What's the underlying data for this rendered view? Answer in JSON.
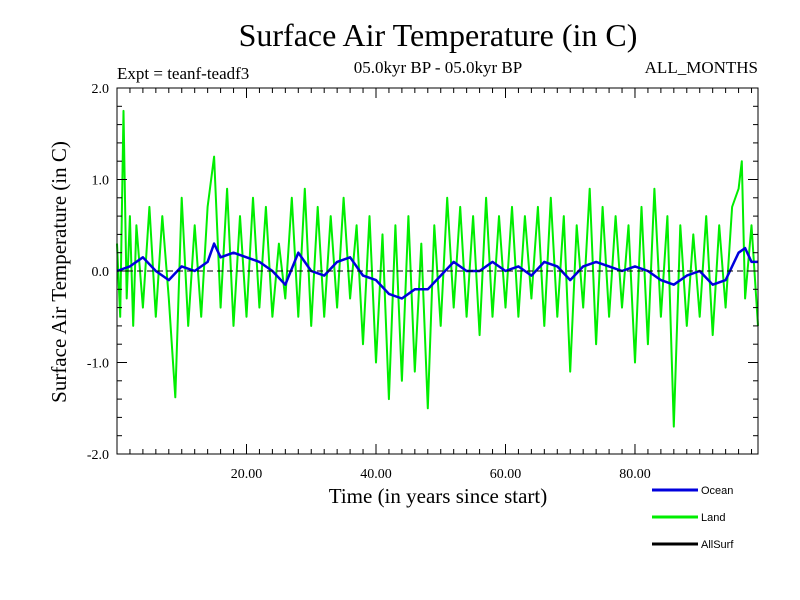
{
  "chart_data": {
    "type": "line",
    "title": "Surface Air Temperature (in C)",
    "subtitle_left": "Expt = teanf-teadf3",
    "subtitle_center": "05.0kyr BP - 05.0kyr BP",
    "subtitle_right": "ALL_MONTHS",
    "xlabel": "Time (in years since start)",
    "ylabel": "Surface Air Temperature (in C)",
    "xlim": [
      0,
      99
    ],
    "ylim": [
      -2.0,
      2.0
    ],
    "x_ticks": [
      20,
      40,
      60,
      80
    ],
    "x_tick_labels": [
      "20.00",
      "40.00",
      "60.00",
      "80.00"
    ],
    "y_ticks": [
      -2.0,
      -1.0,
      0.0,
      1.0,
      2.0
    ],
    "y_tick_labels": [
      "-2.0",
      "-1.0",
      "0.0",
      "1.0",
      "2.0"
    ],
    "zero_line": "dashed",
    "legend_position": "bottom-right",
    "series": [
      {
        "name": "Ocean",
        "color": "#0000dd",
        "x": [
          0,
          2,
          4,
          6,
          8,
          10,
          12,
          14,
          15,
          16,
          18,
          20,
          22,
          24,
          26,
          28,
          30,
          32,
          34,
          36,
          38,
          40,
          42,
          44,
          46,
          48,
          50,
          52,
          54,
          56,
          58,
          60,
          62,
          64,
          66,
          68,
          70,
          72,
          74,
          76,
          78,
          80,
          82,
          84,
          86,
          88,
          90,
          92,
          94,
          96,
          97,
          98,
          99
        ],
        "values": [
          0.0,
          0.05,
          0.15,
          0.0,
          -0.1,
          0.05,
          0.0,
          0.1,
          0.3,
          0.15,
          0.2,
          0.15,
          0.1,
          0.0,
          -0.15,
          0.2,
          0.0,
          -0.05,
          0.1,
          0.15,
          -0.05,
          -0.1,
          -0.25,
          -0.3,
          -0.2,
          -0.2,
          -0.05,
          0.1,
          0.0,
          0.0,
          0.1,
          0.0,
          0.05,
          -0.05,
          0.1,
          0.05,
          -0.1,
          0.05,
          0.1,
          0.05,
          0.0,
          0.05,
          0.0,
          -0.1,
          -0.15,
          -0.05,
          0.0,
          -0.15,
          -0.1,
          0.2,
          0.25,
          0.1,
          0.1
        ]
      },
      {
        "name": "Land",
        "color": "#00ee00",
        "x": [
          0,
          0.5,
          1,
          1.5,
          2,
          2.5,
          3,
          4,
          5,
          6,
          7,
          8,
          9,
          10,
          11,
          12,
          13,
          14,
          15,
          16,
          17,
          18,
          19,
          20,
          21,
          22,
          23,
          24,
          25,
          26,
          27,
          28,
          29,
          30,
          31,
          32,
          33,
          34,
          35,
          36,
          37,
          38,
          39,
          40,
          41,
          42,
          43,
          44,
          45,
          46,
          47,
          48,
          49,
          50,
          51,
          52,
          53,
          54,
          55,
          56,
          57,
          58,
          59,
          60,
          61,
          62,
          63,
          64,
          65,
          66,
          67,
          68,
          69,
          70,
          71,
          72,
          73,
          74,
          75,
          76,
          77,
          78,
          79,
          80,
          81,
          82,
          83,
          84,
          85,
          86,
          87,
          88,
          89,
          90,
          91,
          92,
          93,
          94,
          95,
          96,
          96.5,
          97,
          98,
          99
        ],
        "values": [
          0.3,
          -0.5,
          1.75,
          -0.3,
          0.6,
          -0.6,
          0.5,
          -0.4,
          0.7,
          -0.5,
          0.6,
          -0.3,
          -1.38,
          0.8,
          -0.6,
          0.5,
          -0.5,
          0.7,
          1.25,
          -0.4,
          0.9,
          -0.6,
          0.6,
          -0.5,
          0.8,
          -0.4,
          0.7,
          -0.5,
          0.3,
          -0.3,
          0.8,
          -0.5,
          0.9,
          -0.6,
          0.7,
          -0.5,
          0.6,
          -0.4,
          0.8,
          -0.3,
          0.5,
          -0.8,
          0.6,
          -1.0,
          0.4,
          -1.4,
          0.5,
          -1.2,
          0.6,
          -1.1,
          0.3,
          -1.5,
          0.5,
          -0.6,
          0.8,
          -0.4,
          0.7,
          -0.5,
          0.6,
          -0.7,
          0.8,
          -0.5,
          0.6,
          -0.4,
          0.7,
          -0.5,
          0.6,
          -0.3,
          0.7,
          -0.6,
          0.8,
          -0.5,
          0.6,
          -1.1,
          0.5,
          -0.4,
          0.9,
          -0.8,
          0.7,
          -0.5,
          0.6,
          -0.4,
          0.5,
          -1.0,
          0.7,
          -0.8,
          0.9,
          -0.5,
          0.6,
          -1.7,
          0.5,
          -0.6,
          0.4,
          -0.5,
          0.6,
          -0.7,
          0.5,
          -0.4,
          0.7,
          0.9,
          1.2,
          -0.3,
          0.5,
          -0.6
        ]
      },
      {
        "name": "AllSurf",
        "color": "#000000",
        "x": [],
        "values": []
      }
    ]
  }
}
